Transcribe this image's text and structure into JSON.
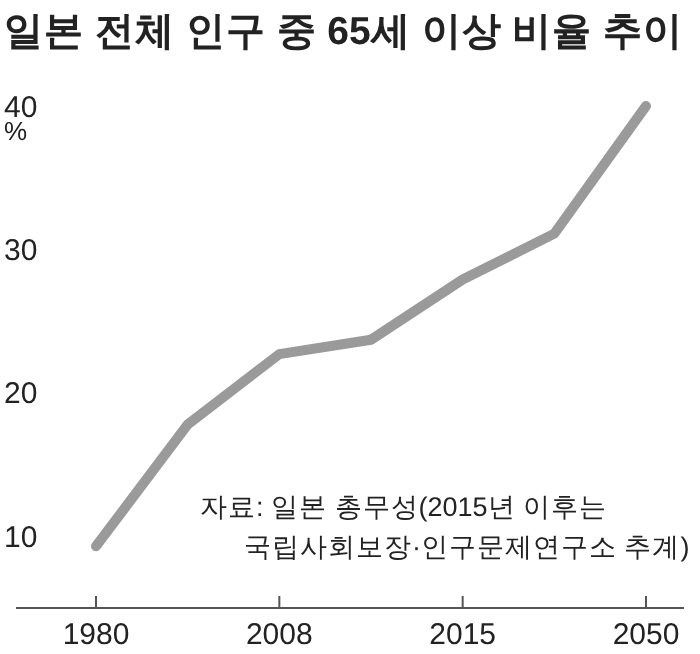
{
  "chart_data": {
    "type": "line",
    "title": "일본 전체 인구 중 65세 이상 비율 추이",
    "ylabel": "%",
    "categories": [
      "1980",
      null,
      "2008",
      null,
      "2015",
      null,
      "2050"
    ],
    "series": [
      {
        "color": "#9a9a9a",
        "values": [
          9.3,
          17.8,
          22.7,
          23.7,
          27.9,
          31.1,
          40
        ]
      }
    ],
    "ylim": [
      5,
      40
    ],
    "yticks": [
      10,
      20,
      30,
      40
    ],
    "marker": "none",
    "line_style": "solid",
    "annotations": [
      "자료: 일본 총무성(2015년 이후는 국립사회보장·인구문제연구소 추계)"
    ]
  }
}
